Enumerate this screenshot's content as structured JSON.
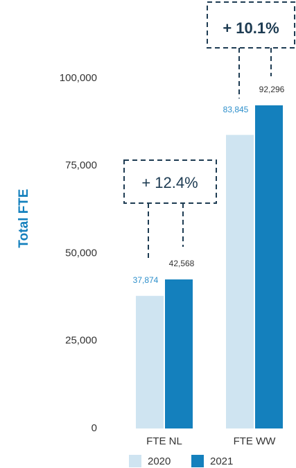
{
  "chart_data": {
    "type": "bar",
    "y_label": "Total FTE",
    "categories": [
      "FTE NL",
      "FTE WW"
    ],
    "series": [
      {
        "name": "2020",
        "color": "#cfe4f1",
        "label_color": "#2d8fcb",
        "values": [
          37874,
          83845
        ],
        "value_labels": [
          "37,874",
          "83,845"
        ]
      },
      {
        "name": "2021",
        "color": "#1480bd",
        "label_color": "#333333",
        "values": [
          42568,
          92296
        ],
        "value_labels": [
          "42,568",
          "92,296"
        ]
      }
    ],
    "ylim": [
      0,
      100000
    ],
    "yticks": [
      0,
      {
        "value": 25000,
        "label": "25,000"
      },
      {
        "value": 50000,
        "label": "50,000"
      },
      {
        "value": 75000,
        "label": "75,000"
      },
      {
        "value": 100000,
        "label": "100,000"
      }
    ],
    "annotations": [
      "+ 12.4%",
      "+ 10.1%"
    ],
    "grid": false
  }
}
